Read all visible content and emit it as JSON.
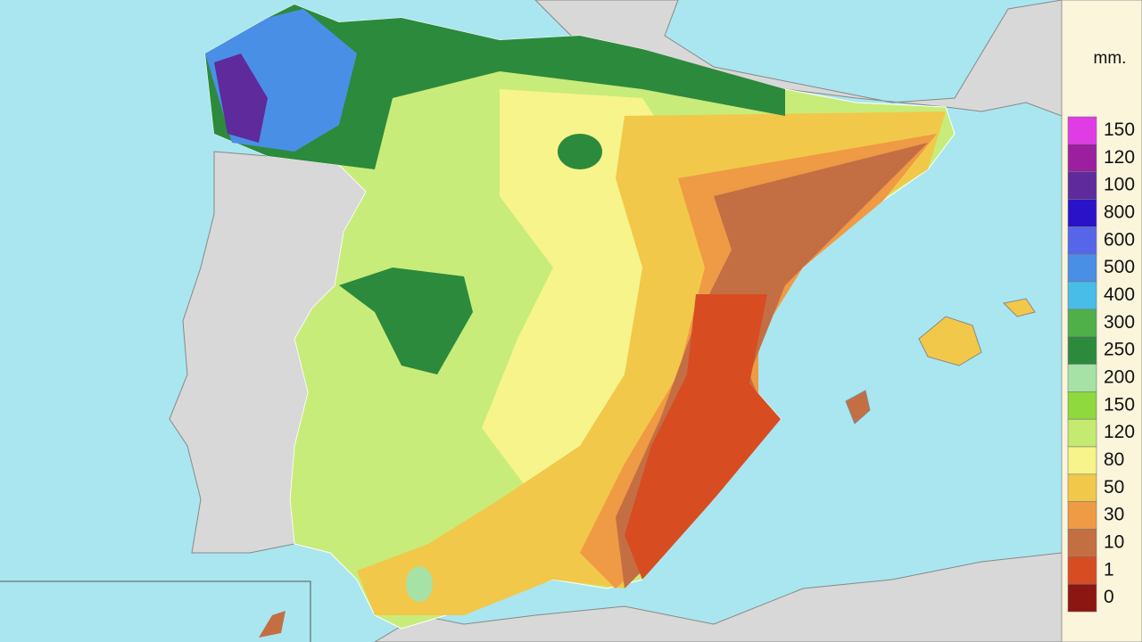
{
  "legend": {
    "unit": "mm.",
    "items": [
      {
        "label": "150",
        "color": "#e03ce6"
      },
      {
        "label": "120",
        "color": "#9b1f9e"
      },
      {
        "label": "100",
        "color": "#5e2a9c"
      },
      {
        "label": "800",
        "color": "#2a12c8"
      },
      {
        "label": "600",
        "color": "#5566ea"
      },
      {
        "label": "500",
        "color": "#4a8fe6"
      },
      {
        "label": "400",
        "color": "#48bde8"
      },
      {
        "label": "300",
        "color": "#4fb04a"
      },
      {
        "label": "250",
        "color": "#2c8a3c"
      },
      {
        "label": "200",
        "color": "#a6e2a6"
      },
      {
        "label": "150",
        "color": "#8fd83e"
      },
      {
        "label": "120",
        "color": "#c4ea72"
      },
      {
        "label": "80",
        "color": "#f6f48a"
      },
      {
        "label": "50",
        "color": "#f2c84a"
      },
      {
        "label": "30",
        "color": "#ef9a44"
      },
      {
        "label": "10",
        "color": "#c46e44"
      },
      {
        "label": "1",
        "color": "#d84c22"
      },
      {
        "label": "0",
        "color": "#8c1612"
      }
    ]
  }
}
